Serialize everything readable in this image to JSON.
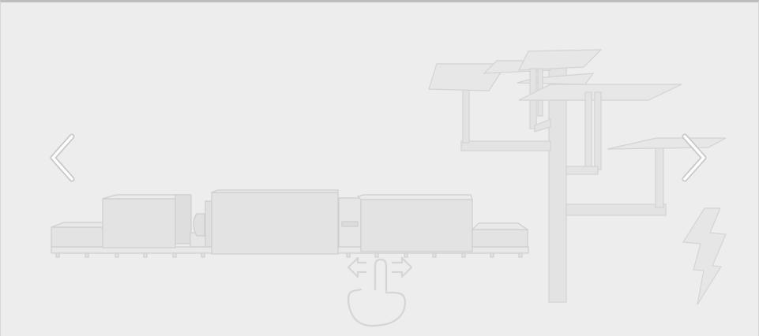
{
  "viewer": {
    "prev_icon": "chevron-left-icon",
    "next_icon": "chevron-right-icon",
    "gesture_hint_icon": "swipe-gesture-icon",
    "power_icon": "lightning-bolt-icon",
    "colors": {
      "background": "#ededed",
      "illustration_fill": "#e4e4e4",
      "illustration_stroke": "#cfcfcf",
      "arrow_stroke": "#cfcfcf",
      "arrow_fill": "#ffffff"
    }
  }
}
